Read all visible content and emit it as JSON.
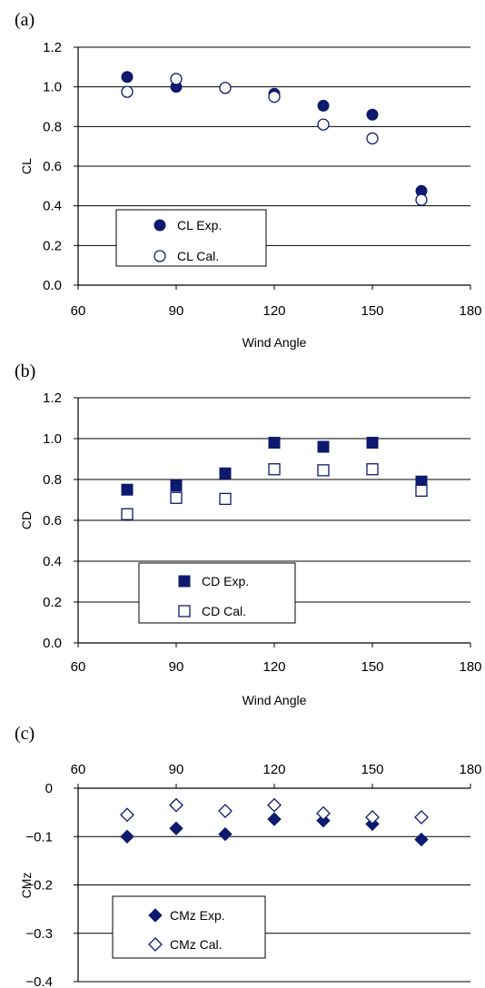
{
  "marker_color": "#0d1a6e",
  "chart_data": [
    {
      "panel": "(a)",
      "type": "scatter",
      "xlabel": "Wind Angle",
      "ylabel": "CL",
      "xlim": [
        60,
        180
      ],
      "ylim": [
        0,
        1.2
      ],
      "xticks": [
        "60",
        "90",
        "120",
        "150",
        "180"
      ],
      "yticks": [
        "0.0",
        "0.2",
        "0.4",
        "0.6",
        "0.8",
        "1.0",
        "1.2"
      ],
      "x_axis_position": "bottom",
      "legend_position": "bottom-left",
      "grid": "horizontal",
      "series": [
        {
          "name": "CL Exp.",
          "marker": "filled-circle",
          "x": [
            75,
            90,
            105,
            120,
            135,
            150,
            165
          ],
          "y": [
            1.05,
            1.0,
            0.995,
            0.965,
            0.905,
            0.86,
            0.475
          ]
        },
        {
          "name": "CL Cal.",
          "marker": "open-circle",
          "x": [
            75,
            90,
            105,
            120,
            135,
            150,
            165
          ],
          "y": [
            0.975,
            1.04,
            0.995,
            0.95,
            0.81,
            0.74,
            0.43
          ]
        }
      ]
    },
    {
      "panel": "(b)",
      "type": "scatter",
      "xlabel": "Wind Angle",
      "ylabel": "CD",
      "xlim": [
        60,
        180
      ],
      "ylim": [
        0,
        1.2
      ],
      "xticks": [
        "60",
        "90",
        "120",
        "150",
        "180"
      ],
      "yticks": [
        "0.0",
        "0.2",
        "0.4",
        "0.6",
        "0.8",
        "1.0",
        "1.2"
      ],
      "x_axis_position": "bottom",
      "legend_position": "bottom-left",
      "grid": "horizontal",
      "series": [
        {
          "name": "CD Exp.",
          "marker": "filled-square",
          "x": [
            75,
            90,
            105,
            120,
            135,
            150,
            165
          ],
          "y": [
            0.75,
            0.77,
            0.83,
            0.98,
            0.96,
            0.98,
            0.79
          ]
        },
        {
          "name": "CD Cal.",
          "marker": "open-square",
          "x": [
            75,
            90,
            105,
            120,
            135,
            150,
            165
          ],
          "y": [
            0.63,
            0.71,
            0.705,
            0.85,
            0.845,
            0.85,
            0.745
          ]
        }
      ]
    },
    {
      "panel": "(c)",
      "type": "scatter",
      "xlabel": "",
      "ylabel": "CMz",
      "xlim": [
        60,
        180
      ],
      "ylim": [
        -0.4,
        0
      ],
      "xticks": [
        "60",
        "90",
        "120",
        "150",
        "180"
      ],
      "yticks": [
        "0",
        "−0.1",
        "−0.2",
        "−0.3",
        "−0.4"
      ],
      "x_axis_position": "top",
      "legend_position": "bottom-left",
      "grid": "horizontal",
      "series": [
        {
          "name": "CMz Exp.",
          "marker": "filled-diamond",
          "x": [
            75,
            90,
            105,
            120,
            135,
            150,
            165
          ],
          "y": [
            -0.1,
            -0.083,
            -0.095,
            -0.064,
            -0.067,
            -0.074,
            -0.106
          ]
        },
        {
          "name": "CMz Cal.",
          "marker": "open-diamond",
          "x": [
            75,
            90,
            105,
            120,
            135,
            150,
            165
          ],
          "y": [
            -0.055,
            -0.035,
            -0.047,
            -0.035,
            -0.052,
            -0.06,
            -0.06
          ]
        }
      ]
    }
  ]
}
